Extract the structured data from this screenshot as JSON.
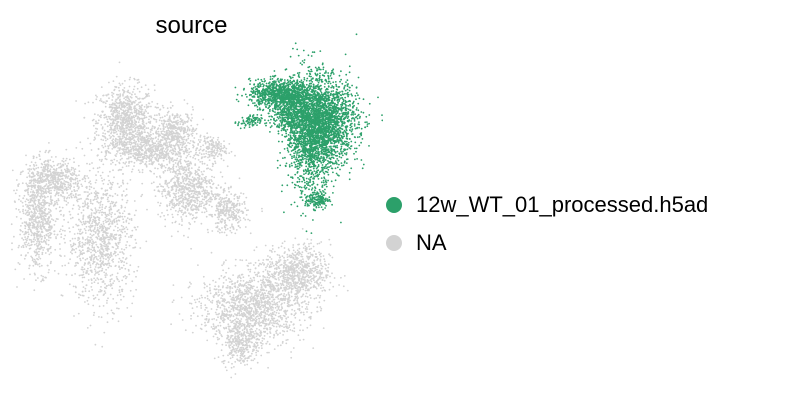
{
  "chart_data": {
    "type": "scatter",
    "title": "source",
    "xlabel": "",
    "ylabel": "",
    "grid": false,
    "legend_position": "right",
    "series": [
      {
        "name": "12w_WT_01_processed.h5ad",
        "color": "#2ca06a",
        "clusters": [
          {
            "cx": 0.52,
            "cy": 0.8,
            "rx": 0.13,
            "ry": 0.06,
            "n": 900
          },
          {
            "cx": 0.7,
            "cy": 0.55,
            "rx": 0.1,
            "ry": 0.26,
            "n": 1500
          },
          {
            "cx": 0.8,
            "cy": 0.62,
            "rx": 0.13,
            "ry": 0.18,
            "n": 1600
          },
          {
            "cx": 0.58,
            "cy": 0.68,
            "rx": 0.08,
            "ry": 0.1,
            "n": 500
          },
          {
            "cx": 0.33,
            "cy": 0.62,
            "rx": 0.05,
            "ry": 0.03,
            "n": 80
          },
          {
            "cx": 0.74,
            "cy": 0.13,
            "rx": 0.05,
            "ry": 0.04,
            "n": 150
          }
        ]
      },
      {
        "name": "NA",
        "color": "#d3d3d3",
        "clusters": [
          {
            "cx": -0.42,
            "cy": 0.62,
            "rx": 0.12,
            "ry": 0.16,
            "n": 900
          },
          {
            "cx": -0.12,
            "cy": 0.55,
            "rx": 0.09,
            "ry": 0.1,
            "n": 400
          },
          {
            "cx": -0.28,
            "cy": 0.44,
            "rx": 0.15,
            "ry": 0.08,
            "n": 500
          },
          {
            "cx": -0.05,
            "cy": 0.2,
            "rx": 0.12,
            "ry": 0.14,
            "n": 700
          },
          {
            "cx": -0.85,
            "cy": 0.25,
            "rx": 0.12,
            "ry": 0.1,
            "n": 500
          },
          {
            "cx": -0.95,
            "cy": 0.0,
            "rx": 0.08,
            "ry": 0.22,
            "n": 700
          },
          {
            "cx": -0.57,
            "cy": -0.12,
            "rx": 0.14,
            "ry": 0.28,
            "n": 1000
          },
          {
            "cx": 0.2,
            "cy": 0.05,
            "rx": 0.08,
            "ry": 0.09,
            "n": 300
          },
          {
            "cx": 0.35,
            "cy": -0.55,
            "rx": 0.22,
            "ry": 0.16,
            "n": 1300
          },
          {
            "cx": 0.62,
            "cy": -0.33,
            "rx": 0.14,
            "ry": 0.12,
            "n": 700
          },
          {
            "cx": 0.28,
            "cy": -0.78,
            "rx": 0.08,
            "ry": 0.1,
            "n": 300
          },
          {
            "cx": 0.1,
            "cy": 0.45,
            "rx": 0.06,
            "ry": 0.06,
            "n": 150
          }
        ]
      }
    ]
  }
}
